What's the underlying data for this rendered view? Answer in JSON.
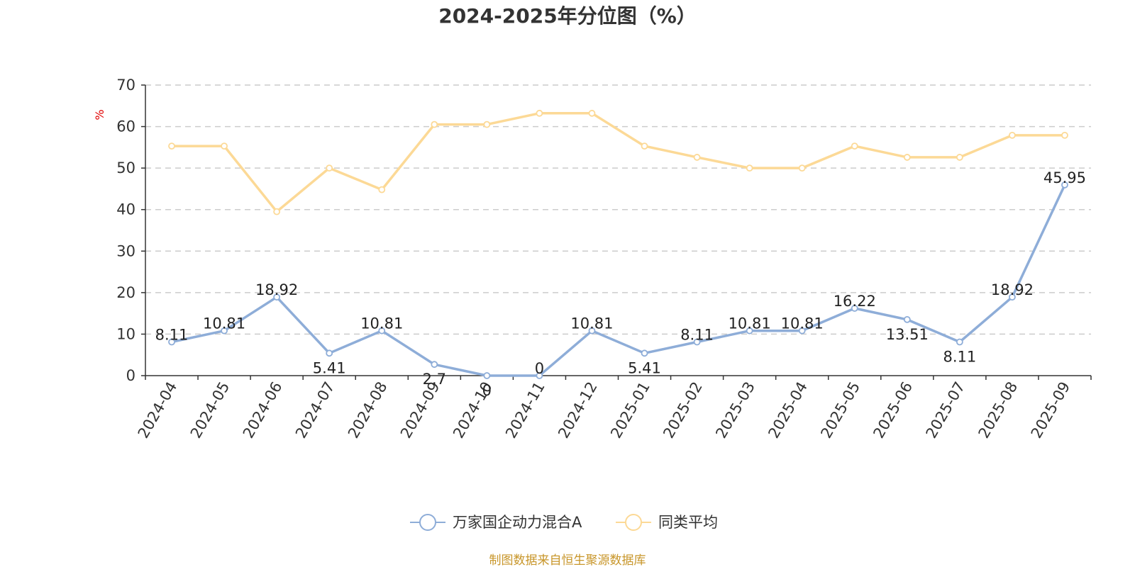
{
  "chart_data": {
    "type": "line",
    "title": "2024-2025年分位图（%）",
    "ylabel": "%",
    "xlabel": "",
    "ylim": [
      0,
      70
    ],
    "yticks": [
      0,
      10,
      20,
      30,
      40,
      50,
      60,
      70
    ],
    "grid": true,
    "categories": [
      "2024-04",
      "2024-05",
      "2024-06",
      "2024-07",
      "2024-08",
      "2024-09",
      "2024-10",
      "2024-11",
      "2024-12",
      "2025-01",
      "2025-02",
      "2025-03",
      "2025-04",
      "2025-05",
      "2025-06",
      "2025-07",
      "2025-08",
      "2025-09"
    ],
    "series": [
      {
        "name": "万家国企动力混合A",
        "color": "#8eadd8",
        "values": [
          8.11,
          10.81,
          18.92,
          5.41,
          10.81,
          2.7,
          0,
          0,
          10.81,
          5.41,
          8.11,
          10.81,
          10.81,
          16.22,
          13.51,
          8.11,
          18.92,
          45.95
        ],
        "labels": [
          "8.11",
          "10.81",
          "18.92",
          "5.41",
          "10.81",
          "2.7",
          "0",
          "0",
          "10.81",
          "5.41",
          "8.11",
          "10.81",
          "10.81",
          "16.22",
          "13.51",
          "8.11",
          "18.92",
          "45.95"
        ]
      },
      {
        "name": "同类平均",
        "color": "#fcd996",
        "values": [
          55.3,
          55.3,
          39.5,
          50.0,
          44.8,
          60.5,
          60.5,
          63.2,
          63.2,
          55.3,
          52.6,
          50.0,
          50.0,
          55.3,
          52.6,
          52.6,
          57.9,
          57.9
        ]
      }
    ],
    "legend_position": "bottom",
    "source": "制图数据来自恒生聚源数据库"
  },
  "colors": {
    "axis": "#333333",
    "grid": "#cccccc",
    "ylabel": "#e00000",
    "source": "#c8962a"
  }
}
